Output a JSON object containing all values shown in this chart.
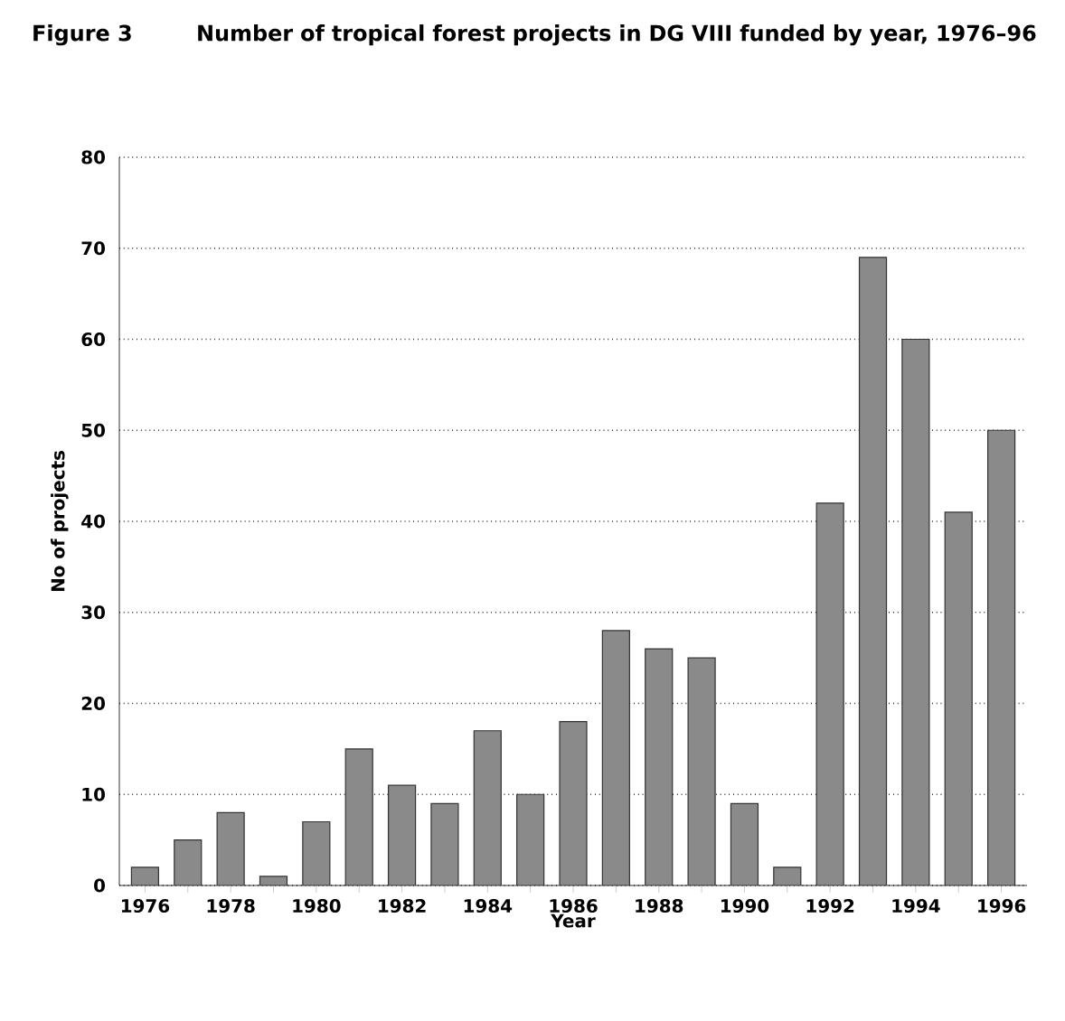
{
  "chart_data": {
    "type": "bar",
    "title": "Number of tropical forest projects in DG VIII funded by year, 1976–96",
    "annotations": [
      "Figure 3"
    ],
    "xlabel": "Year",
    "ylabel": "No of projects",
    "categories": [
      "1976",
      null,
      "1978",
      null,
      "1980",
      null,
      "1982",
      null,
      "1984",
      null,
      "1986",
      null,
      "1988",
      null,
      "1990",
      null,
      "1992",
      null,
      "1994",
      null,
      "1996"
    ],
    "values": [
      2,
      5,
      8,
      1,
      7,
      15,
      11,
      9,
      17,
      10,
      18,
      28,
      26,
      25,
      9,
      2,
      42,
      69,
      60,
      41,
      50
    ],
    "color": "#8a8a8a",
    "ylim": [
      0,
      80
    ],
    "yticks": [
      0,
      10,
      20,
      30,
      40,
      50,
      60,
      70,
      80
    ],
    "grid": "y"
  }
}
